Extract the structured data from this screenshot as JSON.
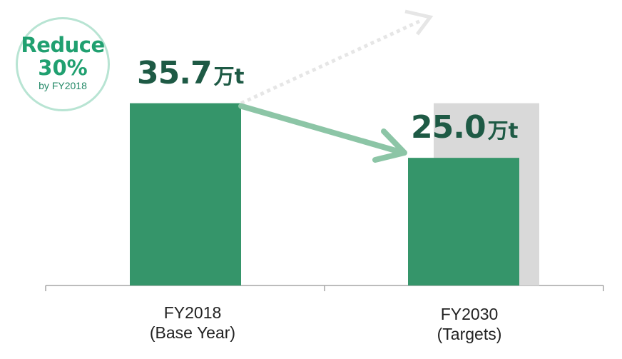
{
  "chart_data": {
    "type": "bar",
    "categories": [
      "FY2018\n(Base Year)",
      "FY2030\n(Targets)"
    ],
    "category_lines": [
      [
        "FY2018",
        "(Base Year)"
      ],
      [
        "FY2030",
        "(Targets)"
      ]
    ],
    "values": [
      35.7,
      25.0
    ],
    "value_labels": [
      {
        "number": "35.7",
        "unit": "万t"
      },
      {
        "number": "25.0",
        "unit": "万t"
      }
    ],
    "ylim": [
      0,
      52
    ],
    "grid": false,
    "badge": {
      "line1": "Reduce",
      "line2": "30%",
      "line3": "by FY2018"
    },
    "colors": {
      "bar": "#35956a",
      "background_bar": "#d9d9d9",
      "arrow": "#8cc5a6",
      "dotted_arrow": "#e6e6e6",
      "value_text": "#1e5a45",
      "badge_text": "#20a070",
      "badge_border": "#b8e4d3",
      "axis": "#a6a6a6"
    }
  }
}
